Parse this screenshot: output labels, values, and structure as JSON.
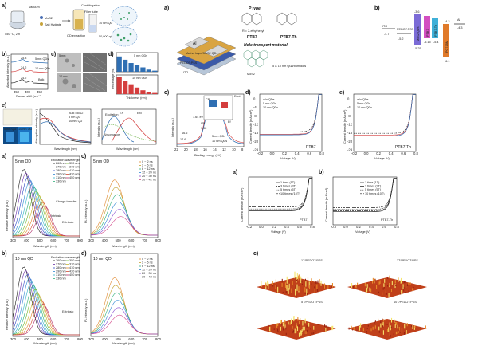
{
  "panel_labels": [
    "a)",
    "b)",
    "c)",
    "d)",
    "e)",
    "a)",
    "b)",
    "c)",
    "d)",
    "e)",
    "f)",
    "a)",
    "b)",
    "c)",
    "d)",
    "a)",
    "b)",
    "c)"
  ],
  "fig1_synthesis": {
    "steps": [
      "Vacuum",
      "MoS2",
      "Salt Hydrate",
      "QD extraction",
      "Centrifugation",
      "Filter tube",
      "10 nm QD",
      "50,000 rpm 15s"
    ],
    "temperature": "550 °C, 2 h"
  },
  "fig1_raman": {
    "ylabel": "Absorbed intensity (a.u.)",
    "xlabel": "Raman shift (cm⁻¹)",
    "xticks": [
      "350",
      "400",
      "450"
    ],
    "curves": [
      "5 nm QDs",
      "10 nm QDs",
      "Bulk"
    ],
    "annotations": [
      "25.3",
      "24.2",
      "24.2"
    ]
  },
  "fig1_tem": {
    "labels": [
      "5 nm",
      "10 nm"
    ]
  },
  "fig1_histograms": {
    "xlabel": "Thickness (nm)",
    "ylabel": "Percentage (%)",
    "legend": [
      "5 nm QDs",
      "10 nm QDs"
    ],
    "xticks": [
      "1",
      "2",
      "3",
      "4",
      "5",
      "6",
      "7"
    ],
    "values_5nm": [
      28,
      22,
      16,
      12,
      8,
      4,
      2
    ],
    "values_10nm": [
      32,
      24,
      18,
      12,
      7,
      4,
      2
    ]
  },
  "fig1_absorption": {
    "xlabel": "Wavelength (nm)",
    "ylabel": "Absorption intensity (a.u.)",
    "legend": [
      "Bulk MoS2",
      "5 nm QD",
      "10 nm QD"
    ],
    "photo_labels": [
      "5 nm QD",
      "10 nm QD"
    ]
  },
  "fig1_pl_map": {
    "xlabel": "Wavelength (nm)",
    "ylabel": "Intensity (a.u.)",
    "annotations": [
      "Excitation",
      "Absorbance",
      "EX",
      "EM",
      "UV",
      "PL"
    ]
  },
  "fig2_pl_5nm": {
    "title": "5 nm QD",
    "xlabel": "Wavelength (nm)",
    "ylabel": "Relative intensity (a.u.)",
    "legend_title": "Excitation wavelength",
    "legend": [
      "260 nm",
      "270 nm",
      "280 nm",
      "290 nm",
      "310 nm",
      "330 nm",
      "350 nm",
      "370 nm",
      "410 nm",
      "430 nm",
      "450 nm"
    ],
    "annotations": [
      "Charge transfer",
      "Intrinsic",
      "Extrinsic"
    ],
    "xticks": [
      "300",
      "400",
      "500",
      "600",
      "700",
      "800"
    ]
  },
  "fig2_pl_10nm": {
    "title": "10 nm QD",
    "xlabel": "Wavelength (nm)",
    "ylabel": "Relative intensity (a.u.)",
    "legend_title": "Excitation wavelength",
    "legend": [
      "260 nm",
      "270 nm",
      "280 nm",
      "290 nm",
      "310 nm",
      "330 nm",
      "350 nm",
      "370 nm",
      "410 nm",
      "430 nm",
      "450 nm"
    ],
    "annotations": [
      "Extrinsic"
    ],
    "xticks": [
      "300",
      "400",
      "500",
      "600",
      "700",
      "800"
    ]
  },
  "fig2_time_5nm": {
    "title": "5 nm QD",
    "xlabel": "Wavelength (nm)",
    "ylabel": "PL intensity (a.u.)",
    "legend": [
      "0 ~ 2 ns",
      "2 ~ 6 ns",
      "6 ~ 12 ns",
      "12 ~ 20 ns",
      "20 ~ 30 ns",
      "30 ~ 42 ns"
    ],
    "xticks": [
      "300",
      "400",
      "500",
      "600",
      "700",
      "800"
    ]
  },
  "fig2_time_10nm": {
    "title": "10 nm QD",
    "xlabel": "Wavelength (nm)",
    "ylabel": "PL intensity (a.u.)",
    "legend": [
      "0 ~ 2 ns",
      "2 ~ 6 ns",
      "6 ~ 12 ns",
      "12 ~ 20 ns",
      "20 ~ 30 ns",
      "30 ~ 42 ns"
    ],
    "xticks": [
      "300",
      "400",
      "500",
      "600",
      "700",
      "800"
    ]
  },
  "fig3_device": {
    "layers": [
      "Al",
      "Active layer/MoS2 QDs",
      "PEDOT:PSS",
      "ITO"
    ],
    "p_type": "P type",
    "polymers": [
      "PTB7",
      "PTB7-Th"
    ],
    "side_chain": "R = 2-ethylhexyl",
    "htm": "Hole transport material",
    "mos2": "MoS2",
    "qd_sizes": "5 & 10 nm Quantum dots"
  },
  "fig3_energy": {
    "materials": [
      "ITO",
      "PEDOT:PSS",
      "MoS2 QDs",
      "PTB7",
      "PTB7-Th",
      "PC71BM",
      "Al"
    ],
    "levels": [
      "-4.7",
      "-5.2",
      "-3.6",
      "-3.6",
      "-5.25",
      "-3.3",
      "-5.15",
      "-5.4",
      "-4.3",
      "-6.1",
      "-4.3"
    ]
  },
  "fig3_ups": {
    "xlabel": "Binding energy (eV)",
    "ylabel": "Intensity (a.u.)",
    "legend": [
      "5 nm QDs",
      "10 nm QDs"
    ],
    "annotations": [
      "CB",
      "VB",
      "Ef",
      "16.6",
      "17.6",
      "1.64 eV",
      "1.92",
      "1.66",
      "5.2 eV",
      "Ecut"
    ],
    "xticks": [
      "22",
      "20",
      "18",
      "16",
      "14",
      "12",
      "10",
      "8"
    ]
  },
  "fig3_jv_ptb7": {
    "title": "PTB7",
    "xlabel": "Voltage (V)",
    "ylabel": "Current density (mA/cm²)",
    "legend": [
      "w/o QDs",
      "5 nm QDs",
      "10 nm QDs"
    ],
    "xticks": [
      "-0.2",
      "0.0",
      "0.2",
      "0.4",
      "0.6",
      "0.8"
    ],
    "yticks": [
      "0",
      "-4",
      "-8",
      "-12",
      "-16",
      "-20",
      "-24"
    ]
  },
  "fig3_jv_ptb7th": {
    "title": "PTB7-Th",
    "xlabel": "Voltage (V)",
    "ylabel": "Current density (mA/cm²)",
    "legend": [
      "w/o QDs",
      "5 nm QDs",
      "10 nm QDs"
    ],
    "xticks": [
      "-0.2",
      "0.0",
      "0.2",
      "0.4",
      "0.6",
      "0.8"
    ],
    "yticks": [
      "0",
      "-4",
      "-8",
      "-12",
      "-16",
      "-20",
      "-24"
    ]
  },
  "fig4_jv_a": {
    "title": "PTB7",
    "xlabel": "Voltage (V)",
    "ylabel": "Current density (mA/cm²)",
    "legend": [
      "1 time (1T)",
      "3 times (3T)",
      "5 times (5T)",
      "10 times (10T)"
    ],
    "xticks": [
      "-0.2",
      "0.0",
      "0.2",
      "0.4",
      "0.6",
      "0.8"
    ]
  },
  "fig4_jv_b": {
    "title": "PTB7-Th",
    "xlabel": "Voltage (V)",
    "ylabel": "Current density (mA/cm²)",
    "legend": [
      "1 time (1T)",
      "3 times (3T)",
      "5 times (5T)",
      "10 times (10T)"
    ],
    "xticks": [
      "-0.2",
      "0.0",
      "0.2",
      "0.4",
      "0.6",
      "0.8"
    ]
  },
  "fig4_afm": {
    "titles": [
      "1T/PEDOT:PSS",
      "3T/PEDOT:PSS",
      "5T/PEDOT:PSS",
      "10T/PEDOT:PSS"
    ],
    "axis_unit": "μm"
  }
}
